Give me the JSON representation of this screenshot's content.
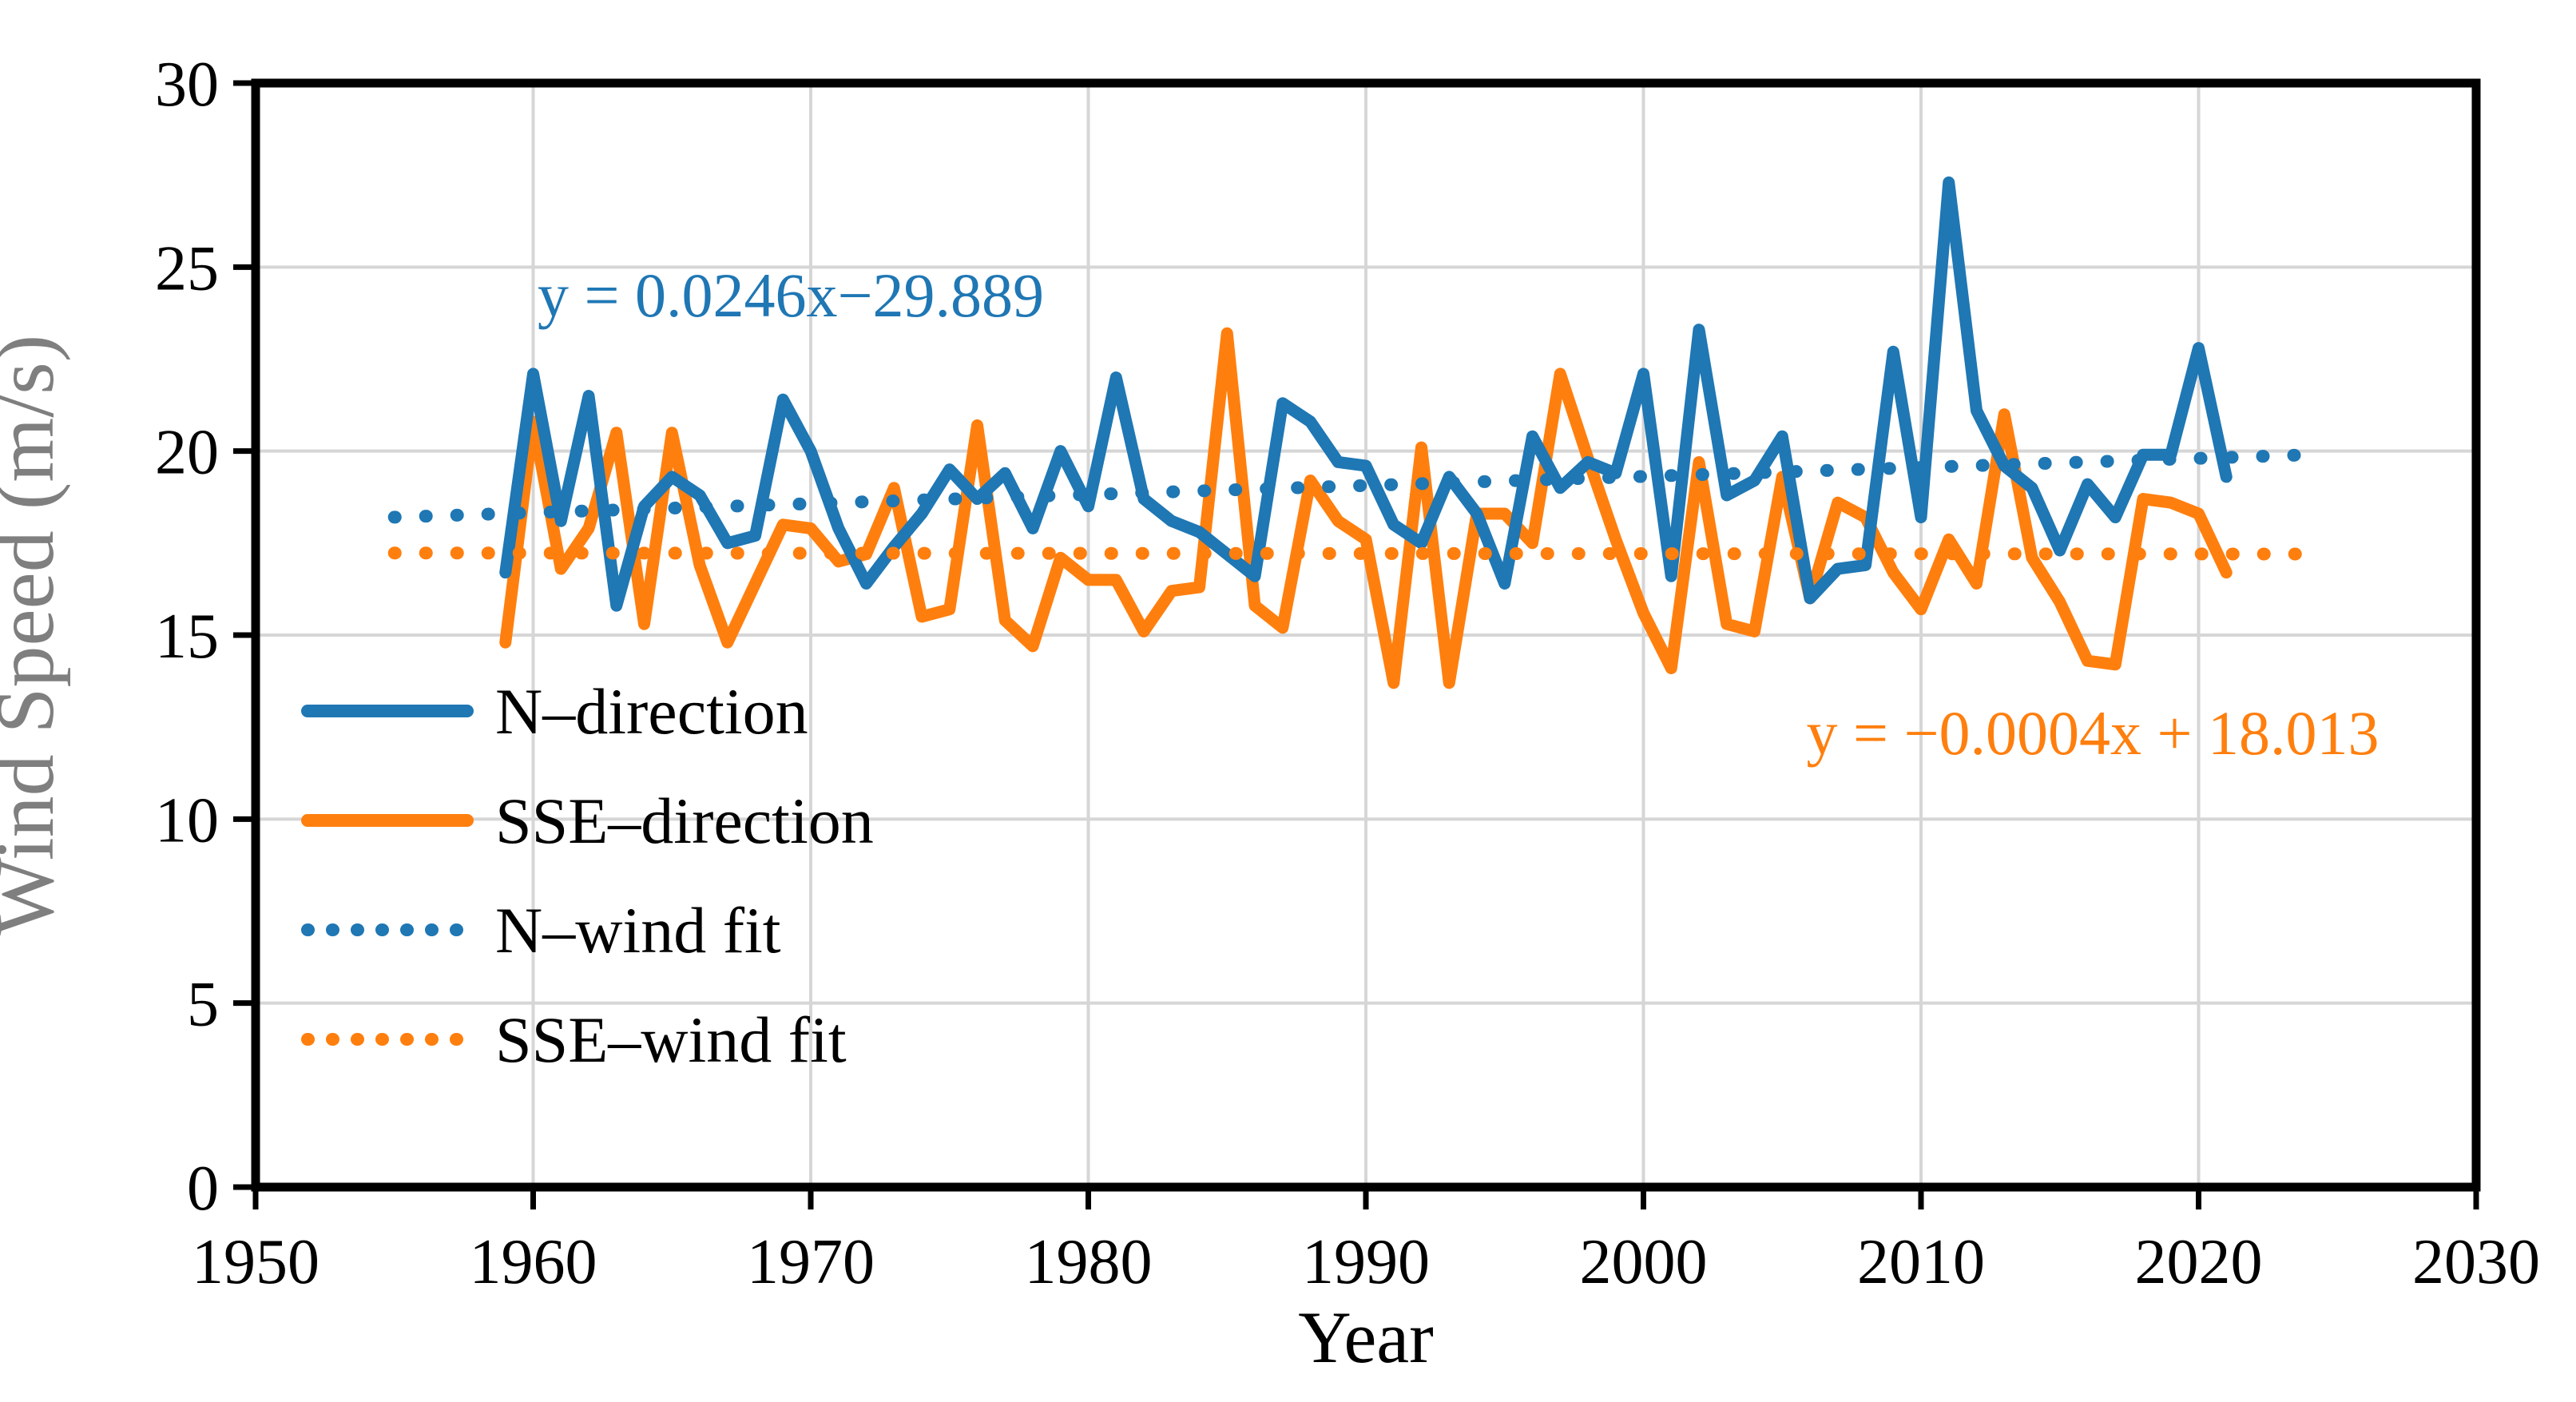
{
  "chart_data": {
    "type": "line",
    "title": "",
    "xlabel": "Year",
    "ylabel": "Wind Speed (m/s)",
    "xlim": [
      1950,
      2030
    ],
    "ylim": [
      0,
      30
    ],
    "x_ticks": [
      1950,
      1960,
      1970,
      1980,
      1990,
      2000,
      2010,
      2020,
      2030
    ],
    "y_ticks": [
      0,
      5,
      10,
      15,
      20,
      25,
      30
    ],
    "grid": true,
    "years": [
      1959,
      1960,
      1961,
      1962,
      1963,
      1964,
      1965,
      1966,
      1967,
      1968,
      1969,
      1970,
      1971,
      1972,
      1973,
      1974,
      1975,
      1976,
      1977,
      1978,
      1979,
      1980,
      1981,
      1982,
      1983,
      1984,
      1985,
      1986,
      1987,
      1988,
      1989,
      1990,
      1991,
      1992,
      1993,
      1994,
      1995,
      1996,
      1997,
      1998,
      1999,
      2000,
      2001,
      2002,
      2003,
      2004,
      2005,
      2006,
      2007,
      2008,
      2009,
      2010,
      2011,
      2012,
      2013,
      2014,
      2015,
      2016,
      2017,
      2018,
      2019,
      2020,
      2021
    ],
    "series": [
      {
        "name": "N–direction",
        "color": "#1F77B4",
        "values": [
          16.7,
          22.1,
          18.1,
          21.5,
          15.8,
          18.5,
          19.3,
          18.8,
          17.5,
          17.7,
          21.4,
          20.0,
          17.9,
          16.4,
          17.4,
          18.3,
          19.5,
          18.7,
          19.4,
          17.9,
          20.0,
          18.5,
          22.0,
          18.7,
          18.1,
          17.8,
          17.2,
          16.6,
          21.3,
          20.8,
          19.7,
          19.6,
          18.0,
          17.5,
          19.3,
          18.3,
          16.4,
          20.4,
          19.0,
          19.7,
          19.4,
          22.1,
          16.6,
          23.3,
          18.8,
          19.2,
          20.4,
          16.0,
          16.8,
          16.9,
          22.7,
          18.2,
          27.3,
          21.1,
          19.6,
          19.0,
          17.3,
          19.1,
          18.2,
          19.9,
          19.9,
          22.8,
          19.3
        ]
      },
      {
        "name": "SSE–direction",
        "color": "#FF7F0E",
        "values": [
          14.8,
          20.8,
          16.8,
          17.9,
          20.5,
          15.3,
          20.5,
          16.9,
          14.8,
          16.4,
          18.0,
          17.9,
          17.0,
          17.2,
          19.0,
          15.5,
          15.7,
          20.7,
          15.4,
          14.7,
          17.1,
          16.5,
          16.5,
          15.1,
          16.2,
          16.3,
          23.2,
          15.8,
          15.2,
          19.2,
          18.1,
          17.6,
          13.7,
          20.1,
          13.7,
          18.3,
          18.3,
          17.5,
          22.1,
          19.8,
          17.6,
          15.6,
          14.1,
          19.7,
          15.3,
          15.1,
          19.3,
          16.0,
          18.6,
          18.2,
          16.7,
          15.7,
          17.6,
          16.4,
          21.0,
          17.1,
          15.9,
          14.3,
          14.2,
          18.7,
          18.6,
          18.3,
          16.7
        ]
      }
    ],
    "fits": [
      {
        "name": "N–wind fit",
        "color": "#1F77B4",
        "equation": "y = 0.0246x−29.889",
        "slope": 0.0246,
        "intercept": -29.889,
        "x_start": 1955,
        "x_end": 2024
      },
      {
        "name": "SSE–wind fit",
        "color": "#FF7F0E",
        "equation": "y = −0.0004x + 18.013",
        "slope": -0.0004,
        "intercept": 18.013,
        "x_start": 1955,
        "x_end": 2024
      }
    ],
    "legend": {
      "position": "inside-left",
      "items": [
        "N–direction",
        "SSE–direction",
        "N–wind fit",
        "SSE–wind fit"
      ]
    },
    "colors": {
      "gridline": "#D6D6D6",
      "axis": "#000000",
      "y_axis_title": "#7F7F7F"
    }
  }
}
